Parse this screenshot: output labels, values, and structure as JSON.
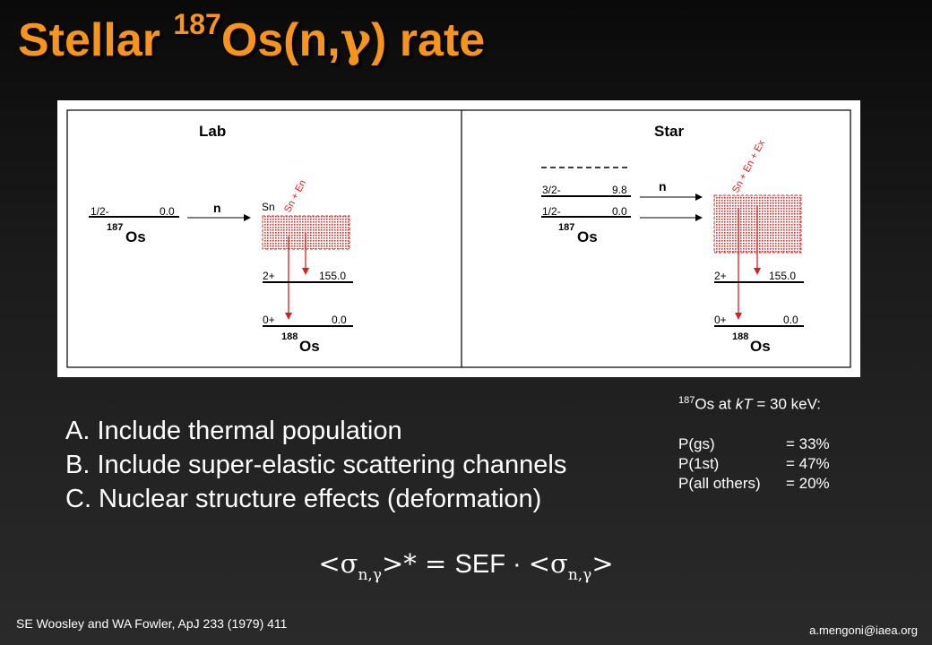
{
  "slide": {
    "title_prefix": "Stellar ",
    "title_mass": "187",
    "title_element": "Os(n,",
    "title_gamma": "γ",
    "title_suffix": ") rate"
  },
  "diagram": {
    "lab": {
      "heading": "Lab",
      "target_level_spin": "1/2-",
      "target_level_energy": "0.0",
      "target_mass": "187",
      "target_element": "Os",
      "projectile": "n",
      "sn_label": "Sn",
      "band_label": "Sn + En",
      "level2_spin": "2+",
      "level2_energy": "155.0",
      "level0_spin": "0+",
      "level0_energy": "0.0",
      "product_mass": "188",
      "product_element": "Os"
    },
    "star": {
      "heading": "Star",
      "excited_level_spin": "3/2-",
      "excited_level_energy": "9.8",
      "target_level_spin": "1/2-",
      "target_level_energy": "0.0",
      "target_mass": "187",
      "target_element": "Os",
      "projectile": "n",
      "band_label": "Sn + En + Ex",
      "level2_spin": "2+",
      "level2_energy": "155.0",
      "level0_spin": "0+",
      "level0_energy": "0.0",
      "product_mass": "188",
      "product_element": "Os"
    }
  },
  "bullets": [
    "A.  Include thermal population",
    "B.  Include super-elastic scattering channels",
    "C.  Nuclear structure effects (deformation)"
  ],
  "population": {
    "header_mass": "187",
    "header_rest": "Os at ",
    "header_kt": "kT",
    "header_value": " = 30 keV:",
    "rows": [
      {
        "label": "P(gs)",
        "value": "= 33%"
      },
      {
        "label": "P(1st)",
        "value": "= 47%"
      },
      {
        "label": "P(all others)",
        "value": "= 20%"
      }
    ]
  },
  "formula": {
    "open": "<σ",
    "sub": "n,γ",
    "star_eq": ">* = ",
    "sef": "SEF · ",
    "open2": "<σ",
    "sub2": "n,γ",
    "close": ">"
  },
  "footer": {
    "citation": "SE Woosley and WA Fowler, ApJ 233 (1979) 411",
    "email": "a.mengoni@iaea.org"
  }
}
